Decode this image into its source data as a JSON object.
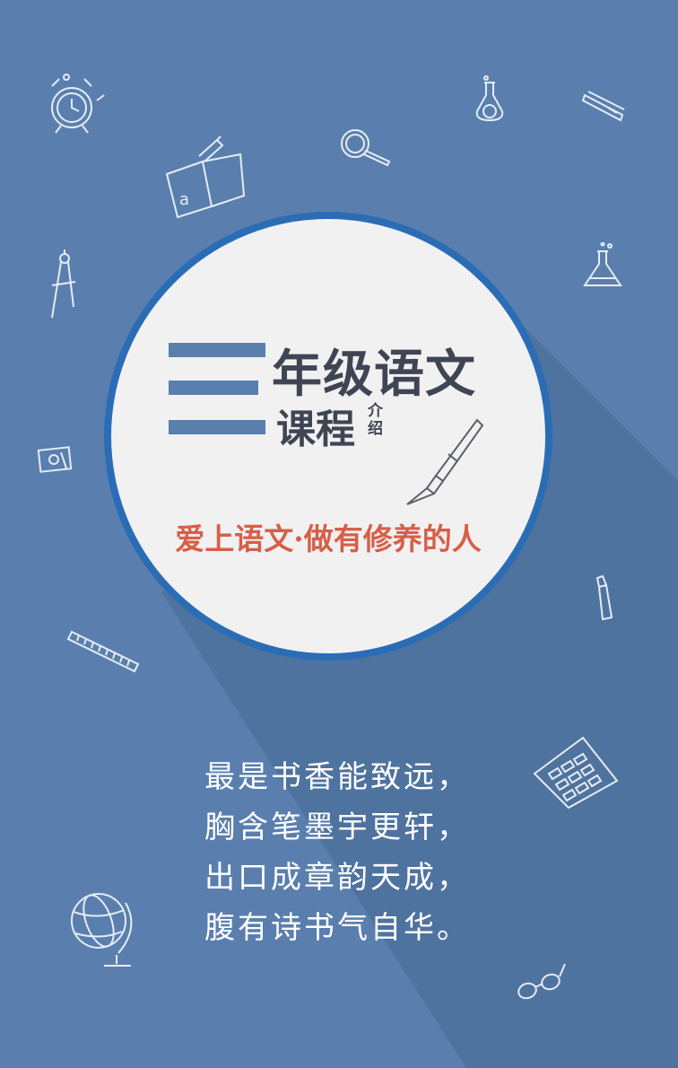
{
  "title": {
    "main": "年级语文",
    "sub": "课程",
    "small": "介绍"
  },
  "slogan": "爱上语文·做有修养的人",
  "poem": [
    "最是书香能致远，",
    "胸含笔墨宇更轩，",
    "出口成章韵天成，",
    "腹有诗书气自华。"
  ],
  "colors": {
    "background": "#5a7fae",
    "ring": "#2b6db5",
    "disc": "#f1f1f2",
    "title": "#3f4553",
    "slogan": "#d75f47",
    "poem": "#ffffff"
  },
  "icons": [
    "alarm-clock-icon",
    "flask-icon",
    "stapler-icon",
    "magnifier-icon",
    "book-pen-icon",
    "compass-icon",
    "beaker-icon",
    "sharpener-icon",
    "glue-icon",
    "ruler-icon",
    "calculator-icon",
    "globe-icon",
    "glasses-icon",
    "fountain-pen-icon"
  ]
}
